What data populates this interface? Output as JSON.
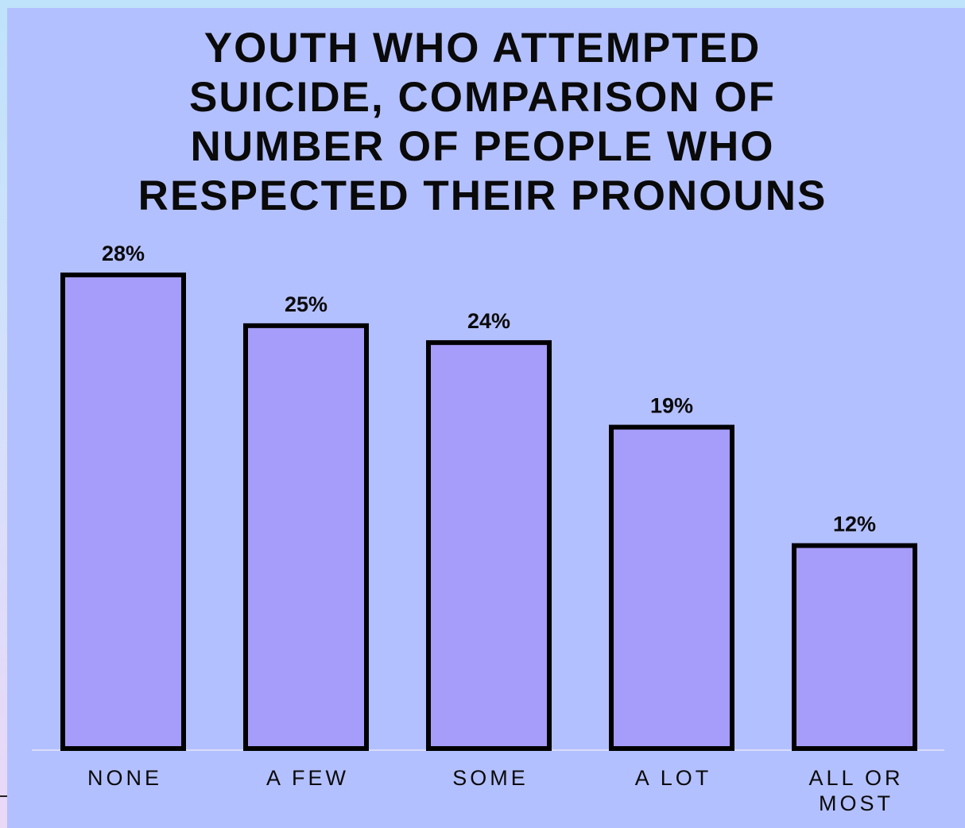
{
  "chart_data": {
    "type": "bar",
    "title_lines": [
      "YOUTH WHO ATTEMPTED",
      "SUICIDE, COMPARISON OF",
      "NUMBER OF PEOPLE WHO",
      "RESPECTED THEIR PRONOUNS"
    ],
    "categories": [
      "NONE",
      "A FEW",
      "SOME",
      "A LOT",
      "ALL OR MOST"
    ],
    "category_lines": [
      [
        "NONE"
      ],
      [
        "A FEW"
      ],
      [
        "SOME"
      ],
      [
        "A LOT"
      ],
      [
        "ALL OR",
        "MOST"
      ]
    ],
    "values": [
      28,
      25,
      24,
      19,
      12
    ],
    "value_labels": [
      "28%",
      "25%",
      "24%",
      "19%",
      "12%"
    ],
    "ylim": [
      0,
      28
    ],
    "grid": false,
    "colors": {
      "bar_fill": "#a69cf9",
      "bar_stroke": "#000000",
      "panel": "#b3c0ff",
      "baseline": "#d8dcf8"
    }
  }
}
